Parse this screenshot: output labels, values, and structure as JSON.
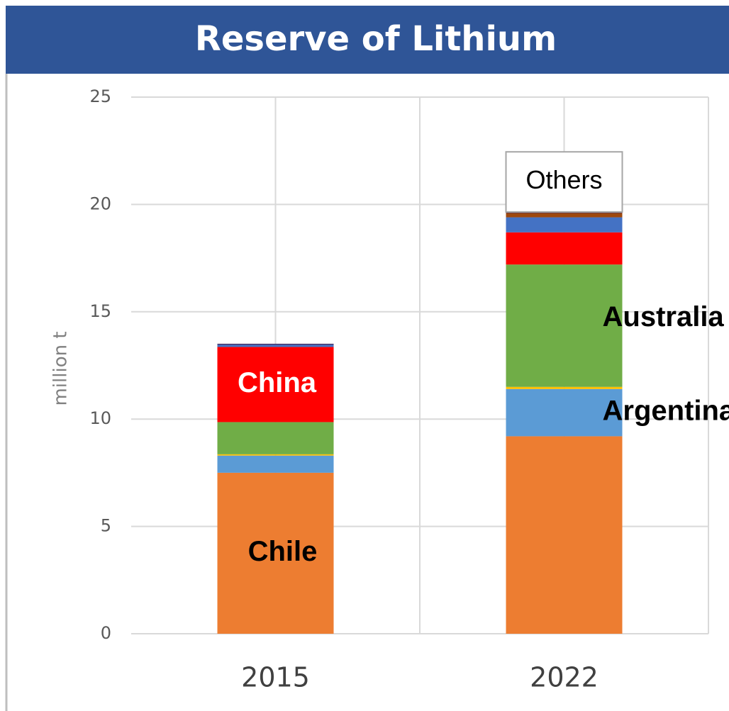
{
  "chart_data": {
    "type": "stacked_bar",
    "title": "Reserve of Lithium",
    "y_label": "million t",
    "categories": [
      "2015",
      "2022"
    ],
    "series": [
      {
        "name": "Chile",
        "color": "#ed7d31",
        "values": [
          7.5,
          9.2
        ]
      },
      {
        "name": "Argentina",
        "color": "#5b9bd5",
        "values": [
          0.8,
          2.2
        ]
      },
      {
        "color": "#ffc000",
        "values": [
          0.06,
          0.1
        ]
      },
      {
        "name": "Australia",
        "color": "#70ad47",
        "values": [
          1.5,
          5.7
        ]
      },
      {
        "name": "China",
        "color": "#ff0000",
        "values": [
          3.5,
          1.5
        ]
      },
      {
        "color": "#4472c4",
        "values": [
          0.1,
          0.7
        ]
      },
      {
        "color": "#9e480e",
        "values": [
          0,
          0.2
        ]
      },
      {
        "color": "#44306a",
        "values": [
          0.05,
          0.05
        ]
      },
      {
        "name": "Others",
        "color": "#ffffff",
        "values": [
          0,
          2.8
        ]
      }
    ],
    "ylim": [
      0,
      25
    ],
    "yticks": [
      0,
      5,
      10,
      15,
      20,
      25
    ],
    "grid": true
  }
}
